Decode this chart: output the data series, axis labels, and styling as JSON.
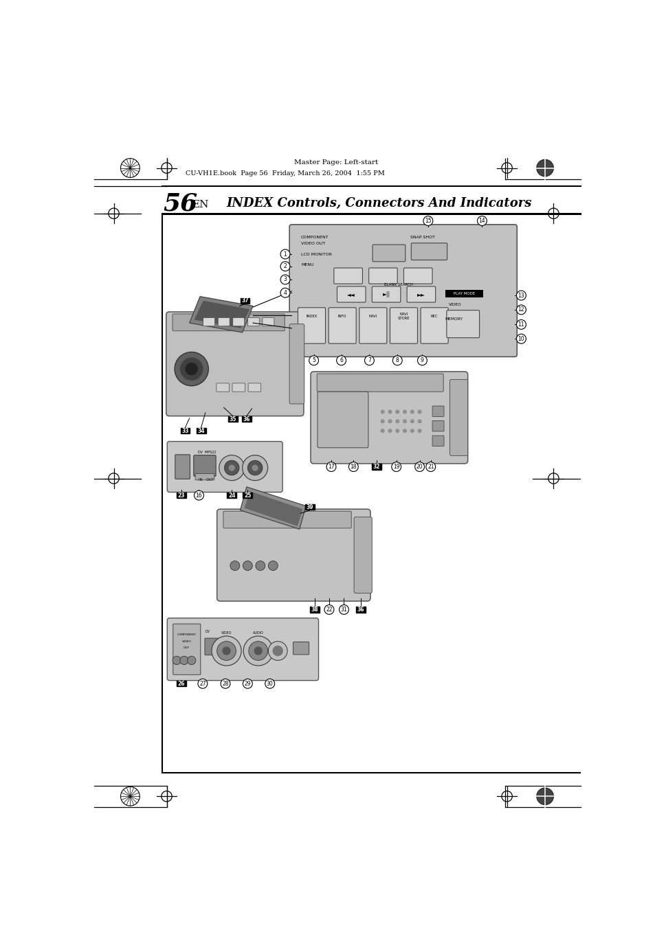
{
  "page_width": 9.54,
  "page_height": 13.51,
  "dpi": 100,
  "bg_color": "#ffffff",
  "header_text": "Master Page: Left-start",
  "file_info": "CU-VH1E.book  Page 56  Friday, March 26, 2004  1:55 PM",
  "page_number": "56",
  "page_suffix": "EN",
  "page_title": "INDEX Controls, Connectors And Indicators",
  "text_color": "#000000",
  "gray_panel": "#c0c0c0",
  "gray_body": "#c8c8c8",
  "gray_dark": "#555555",
  "gray_btn": "#d8d8d8",
  "gray_mid": "#a8a8a8",
  "gray_light": "#e0e0e0"
}
